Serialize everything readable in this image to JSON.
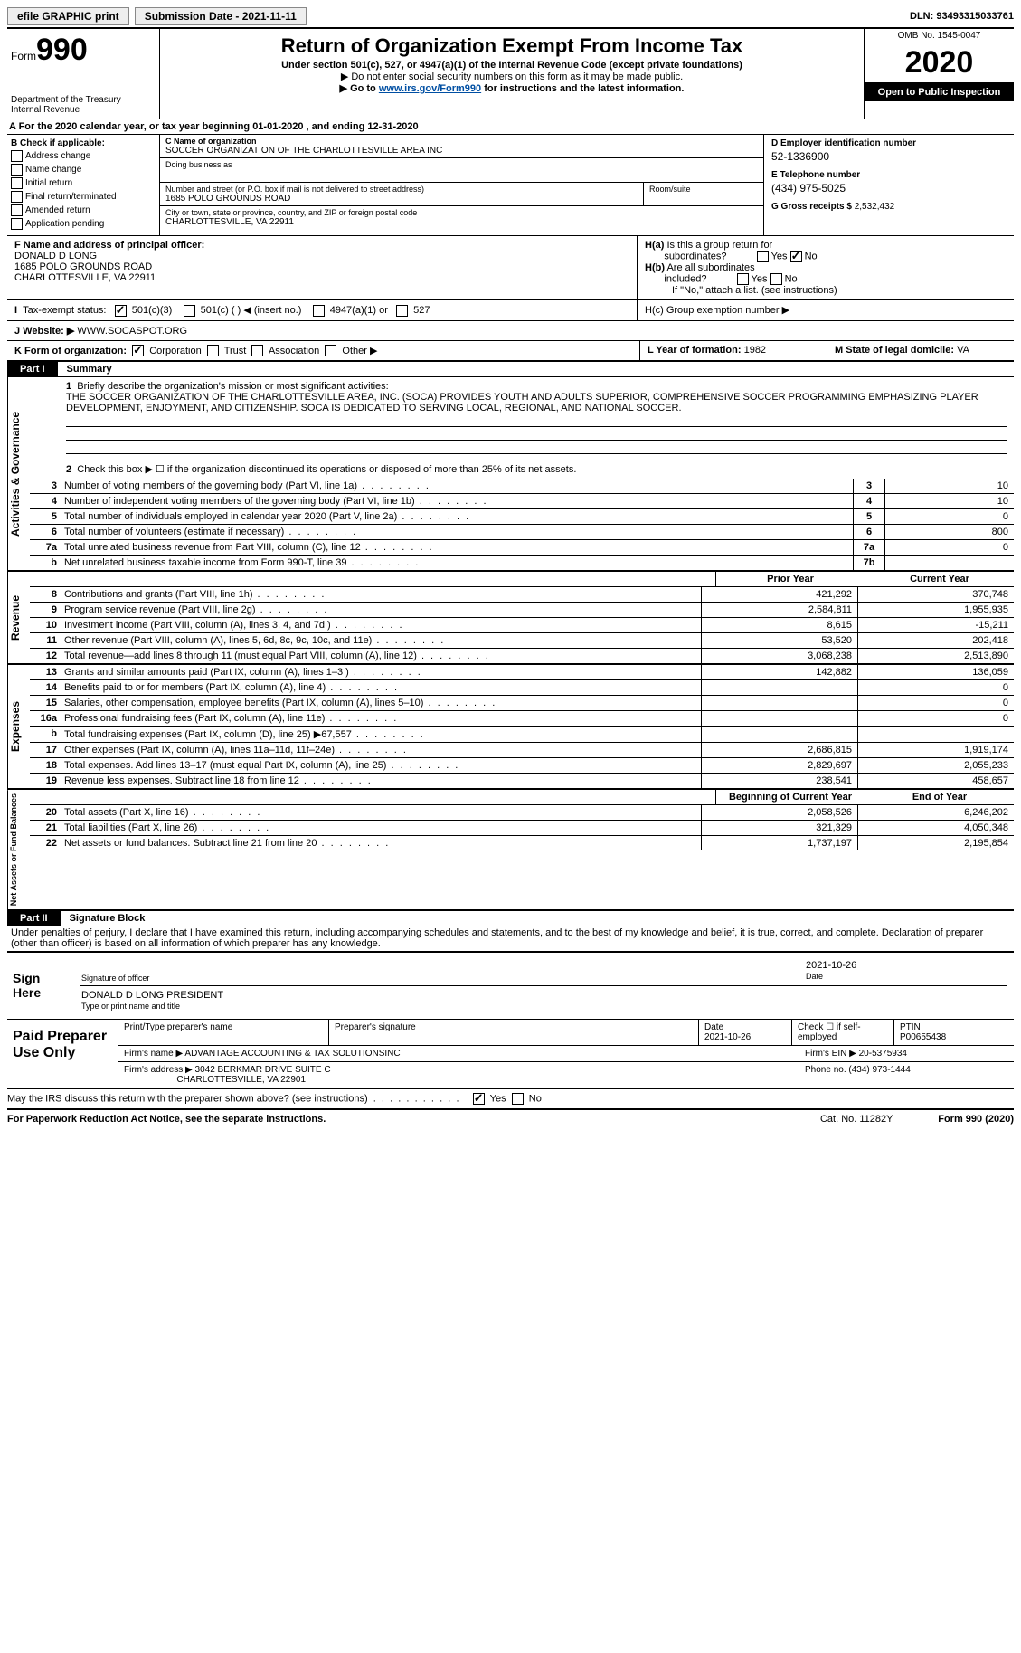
{
  "topbar": {
    "efile": "efile GRAPHIC print",
    "submission": "Submission Date - 2021-11-11",
    "dln": "DLN: 93493315033761"
  },
  "header": {
    "form_label": "Form",
    "form_num": "990",
    "dept": "Department of the Treasury",
    "irs": "Internal Revenue",
    "title": "Return of Organization Exempt From Income Tax",
    "subtitle": "Under section 501(c), 527, or 4947(a)(1) of the Internal Revenue Code (except private foundations)",
    "note1": "▶ Do not enter social security numbers on this form as it may be made public.",
    "note2_pre": "▶ Go to ",
    "note2_link": "www.irs.gov/Form990",
    "note2_post": " for instructions and the latest information.",
    "omb": "OMB No. 1545-0047",
    "year": "2020",
    "inspect": "Open to Public Inspection"
  },
  "period": "A For the 2020 calendar year, or tax year beginning 01-01-2020   , and ending 12-31-2020",
  "b": {
    "title": "B Check if applicable:",
    "items": [
      "Address change",
      "Name change",
      "Initial return",
      "Final return/terminated",
      "Amended return",
      "Application pending"
    ]
  },
  "c": {
    "name_lbl": "C Name of organization",
    "name": "SOCCER ORGANIZATION OF THE CHARLOTTESVILLE AREA INC",
    "dba_lbl": "Doing business as",
    "dba": "",
    "addr_lbl": "Number and street (or P.O. box if mail is not delivered to street address)",
    "room_lbl": "Room/suite",
    "addr": "1685 POLO GROUNDS ROAD",
    "city_lbl": "City or town, state or province, country, and ZIP or foreign postal code",
    "city": "CHARLOTTESVILLE, VA  22911"
  },
  "d": {
    "lbl": "D Employer identification number",
    "val": "52-1336900",
    "e_lbl": "E Telephone number",
    "e_val": "(434) 975-5025",
    "g_lbl": "G Gross receipts $",
    "g_val": "2,532,432"
  },
  "f": {
    "lbl": "F Name and address of principal officer:",
    "name": "DONALD D LONG",
    "addr1": "1685 POLO GROUNDS ROAD",
    "addr2": "CHARLOTTESVILLE, VA  22911"
  },
  "h": {
    "a_lbl": "H(a)  Is this a group return for subordinates?",
    "b_lbl": "H(b)  Are all subordinates included?",
    "b_note": "If \"No,\" attach a list. (see instructions)",
    "c_lbl": "H(c)  Group exemption number ▶",
    "yes": "Yes",
    "no": "No"
  },
  "i": {
    "lbl": "I  Tax-exempt status:",
    "o1": "501(c)(3)",
    "o2": "501(c) (  ) ◀ (insert no.)",
    "o3": "4947(a)(1) or",
    "o4": "527"
  },
  "j": {
    "lbl": "J  Website: ▶",
    "val": "WWW.SOCASPOT.ORG"
  },
  "k": {
    "lbl": "K Form of organization:",
    "o1": "Corporation",
    "o2": "Trust",
    "o3": "Association",
    "o4": "Other ▶",
    "l_lbl": "L Year of formation:",
    "l_val": "1982",
    "m_lbl": "M State of legal domicile:",
    "m_val": "VA"
  },
  "parts": {
    "p1": "Part I",
    "p1_title": "Summary",
    "p2": "Part II",
    "p2_title": "Signature Block"
  },
  "summary": {
    "line1_lbl": "Briefly describe the organization's mission or most significant activities:",
    "line1_txt": "THE SOCCER ORGANIZATION OF THE CHARLOTTESVILLE AREA, INC. (SOCA) PROVIDES YOUTH AND ADULTS SUPERIOR, COMPREHENSIVE SOCCER PROGRAMMING EMPHASIZING PLAYER DEVELOPMENT, ENJOYMENT, AND CITIZENSHIP. SOCA IS DEDICATED TO SERVING LOCAL, REGIONAL, AND NATIONAL SOCCER.",
    "line2": "Check this box ▶ ☐  if the organization discontinued its operations or disposed of more than 25% of its net assets.",
    "sides": {
      "s1": "Activities & Governance",
      "s2": "Revenue",
      "s3": "Expenses",
      "s4": "Net Assets or Fund Balances"
    },
    "gov_lines": [
      {
        "n": "3",
        "t": "Number of voting members of the governing body (Part VI, line 1a)",
        "box": "3",
        "v": "10"
      },
      {
        "n": "4",
        "t": "Number of independent voting members of the governing body (Part VI, line 1b)",
        "box": "4",
        "v": "10"
      },
      {
        "n": "5",
        "t": "Total number of individuals employed in calendar year 2020 (Part V, line 2a)",
        "box": "5",
        "v": "0"
      },
      {
        "n": "6",
        "t": "Total number of volunteers (estimate if necessary)",
        "box": "6",
        "v": "800"
      },
      {
        "n": "7a",
        "t": "Total unrelated business revenue from Part VIII, column (C), line 12",
        "box": "7a",
        "v": "0"
      },
      {
        "n": "b",
        "t": "Net unrelated business taxable income from Form 990-T, line 39",
        "box": "7b",
        "v": ""
      }
    ],
    "col_headers": {
      "prior": "Prior Year",
      "current": "Current Year"
    },
    "revenue": [
      {
        "n": "8",
        "t": "Contributions and grants (Part VIII, line 1h)",
        "p": "421,292",
        "c": "370,748"
      },
      {
        "n": "9",
        "t": "Program service revenue (Part VIII, line 2g)",
        "p": "2,584,811",
        "c": "1,955,935"
      },
      {
        "n": "10",
        "t": "Investment income (Part VIII, column (A), lines 3, 4, and 7d )",
        "p": "8,615",
        "c": "-15,211"
      },
      {
        "n": "11",
        "t": "Other revenue (Part VIII, column (A), lines 5, 6d, 8c, 9c, 10c, and 11e)",
        "p": "53,520",
        "c": "202,418"
      },
      {
        "n": "12",
        "t": "Total revenue—add lines 8 through 11 (must equal Part VIII, column (A), line 12)",
        "p": "3,068,238",
        "c": "2,513,890"
      }
    ],
    "expenses": [
      {
        "n": "13",
        "t": "Grants and similar amounts paid (Part IX, column (A), lines 1–3 )",
        "p": "142,882",
        "c": "136,059"
      },
      {
        "n": "14",
        "t": "Benefits paid to or for members (Part IX, column (A), line 4)",
        "p": "",
        "c": "0"
      },
      {
        "n": "15",
        "t": "Salaries, other compensation, employee benefits (Part IX, column (A), lines 5–10)",
        "p": "",
        "c": "0"
      },
      {
        "n": "16a",
        "t": "Professional fundraising fees (Part IX, column (A), line 11e)",
        "p": "",
        "c": "0"
      },
      {
        "n": "b",
        "t": "Total fundraising expenses (Part IX, column (D), line 25) ▶67,557",
        "p": "gray",
        "c": "gray"
      },
      {
        "n": "17",
        "t": "Other expenses (Part IX, column (A), lines 11a–11d, 11f–24e)",
        "p": "2,686,815",
        "c": "1,919,174"
      },
      {
        "n": "18",
        "t": "Total expenses. Add lines 13–17 (must equal Part IX, column (A), line 25)",
        "p": "2,829,697",
        "c": "2,055,233"
      },
      {
        "n": "19",
        "t": "Revenue less expenses. Subtract line 18 from line 12",
        "p": "238,541",
        "c": "458,657"
      }
    ],
    "na_headers": {
      "begin": "Beginning of Current Year",
      "end": "End of Year"
    },
    "net_assets": [
      {
        "n": "20",
        "t": "Total assets (Part X, line 16)",
        "p": "2,058,526",
        "c": "6,246,202"
      },
      {
        "n": "21",
        "t": "Total liabilities (Part X, line 26)",
        "p": "321,329",
        "c": "4,050,348"
      },
      {
        "n": "22",
        "t": "Net assets or fund balances. Subtract line 21 from line 20",
        "p": "1,737,197",
        "c": "2,195,854"
      }
    ]
  },
  "sig": {
    "intro": "Under penalties of perjury, I declare that I have examined this return, including accompanying schedules and statements, and to the best of my knowledge and belief, it is true, correct, and complete. Declaration of preparer (other than officer) is based on all information of which preparer has any knowledge.",
    "sign_here": "Sign Here",
    "sig_officer": "Signature of officer",
    "date_lbl": "Date",
    "date": "2021-10-26",
    "name": "DONALD D LONG  PRESIDENT",
    "name_lbl": "Type or print name and title"
  },
  "prep": {
    "title": "Paid Preparer Use Only",
    "r1": {
      "a": "Print/Type preparer's name",
      "b": "Preparer's signature",
      "c": "Date",
      "c_val": "2021-10-26",
      "d": "Check ☐ if self-employed",
      "e": "PTIN",
      "e_val": "P00655438"
    },
    "r2": {
      "a": "Firm's name    ▶",
      "a_val": "ADVANTAGE ACCOUNTING & TAX SOLUTIONSINC",
      "b": "Firm's EIN ▶",
      "b_val": "20-5375934"
    },
    "r3": {
      "a": "Firm's address ▶",
      "a_val": "3042 BERKMAR DRIVE SUITE C",
      "a_val2": "CHARLOTTESVILLE, VA  22901",
      "b": "Phone no.",
      "b_val": "(434) 973-1444"
    }
  },
  "bottom": {
    "discuss": "May the IRS discuss this return with the preparer shown above? (see instructions)",
    "yes": "Yes",
    "no": "No",
    "paperwork": "For Paperwork Reduction Act Notice, see the separate instructions.",
    "cat": "Cat. No. 11282Y",
    "formfoot": "Form 990 (2020)"
  }
}
